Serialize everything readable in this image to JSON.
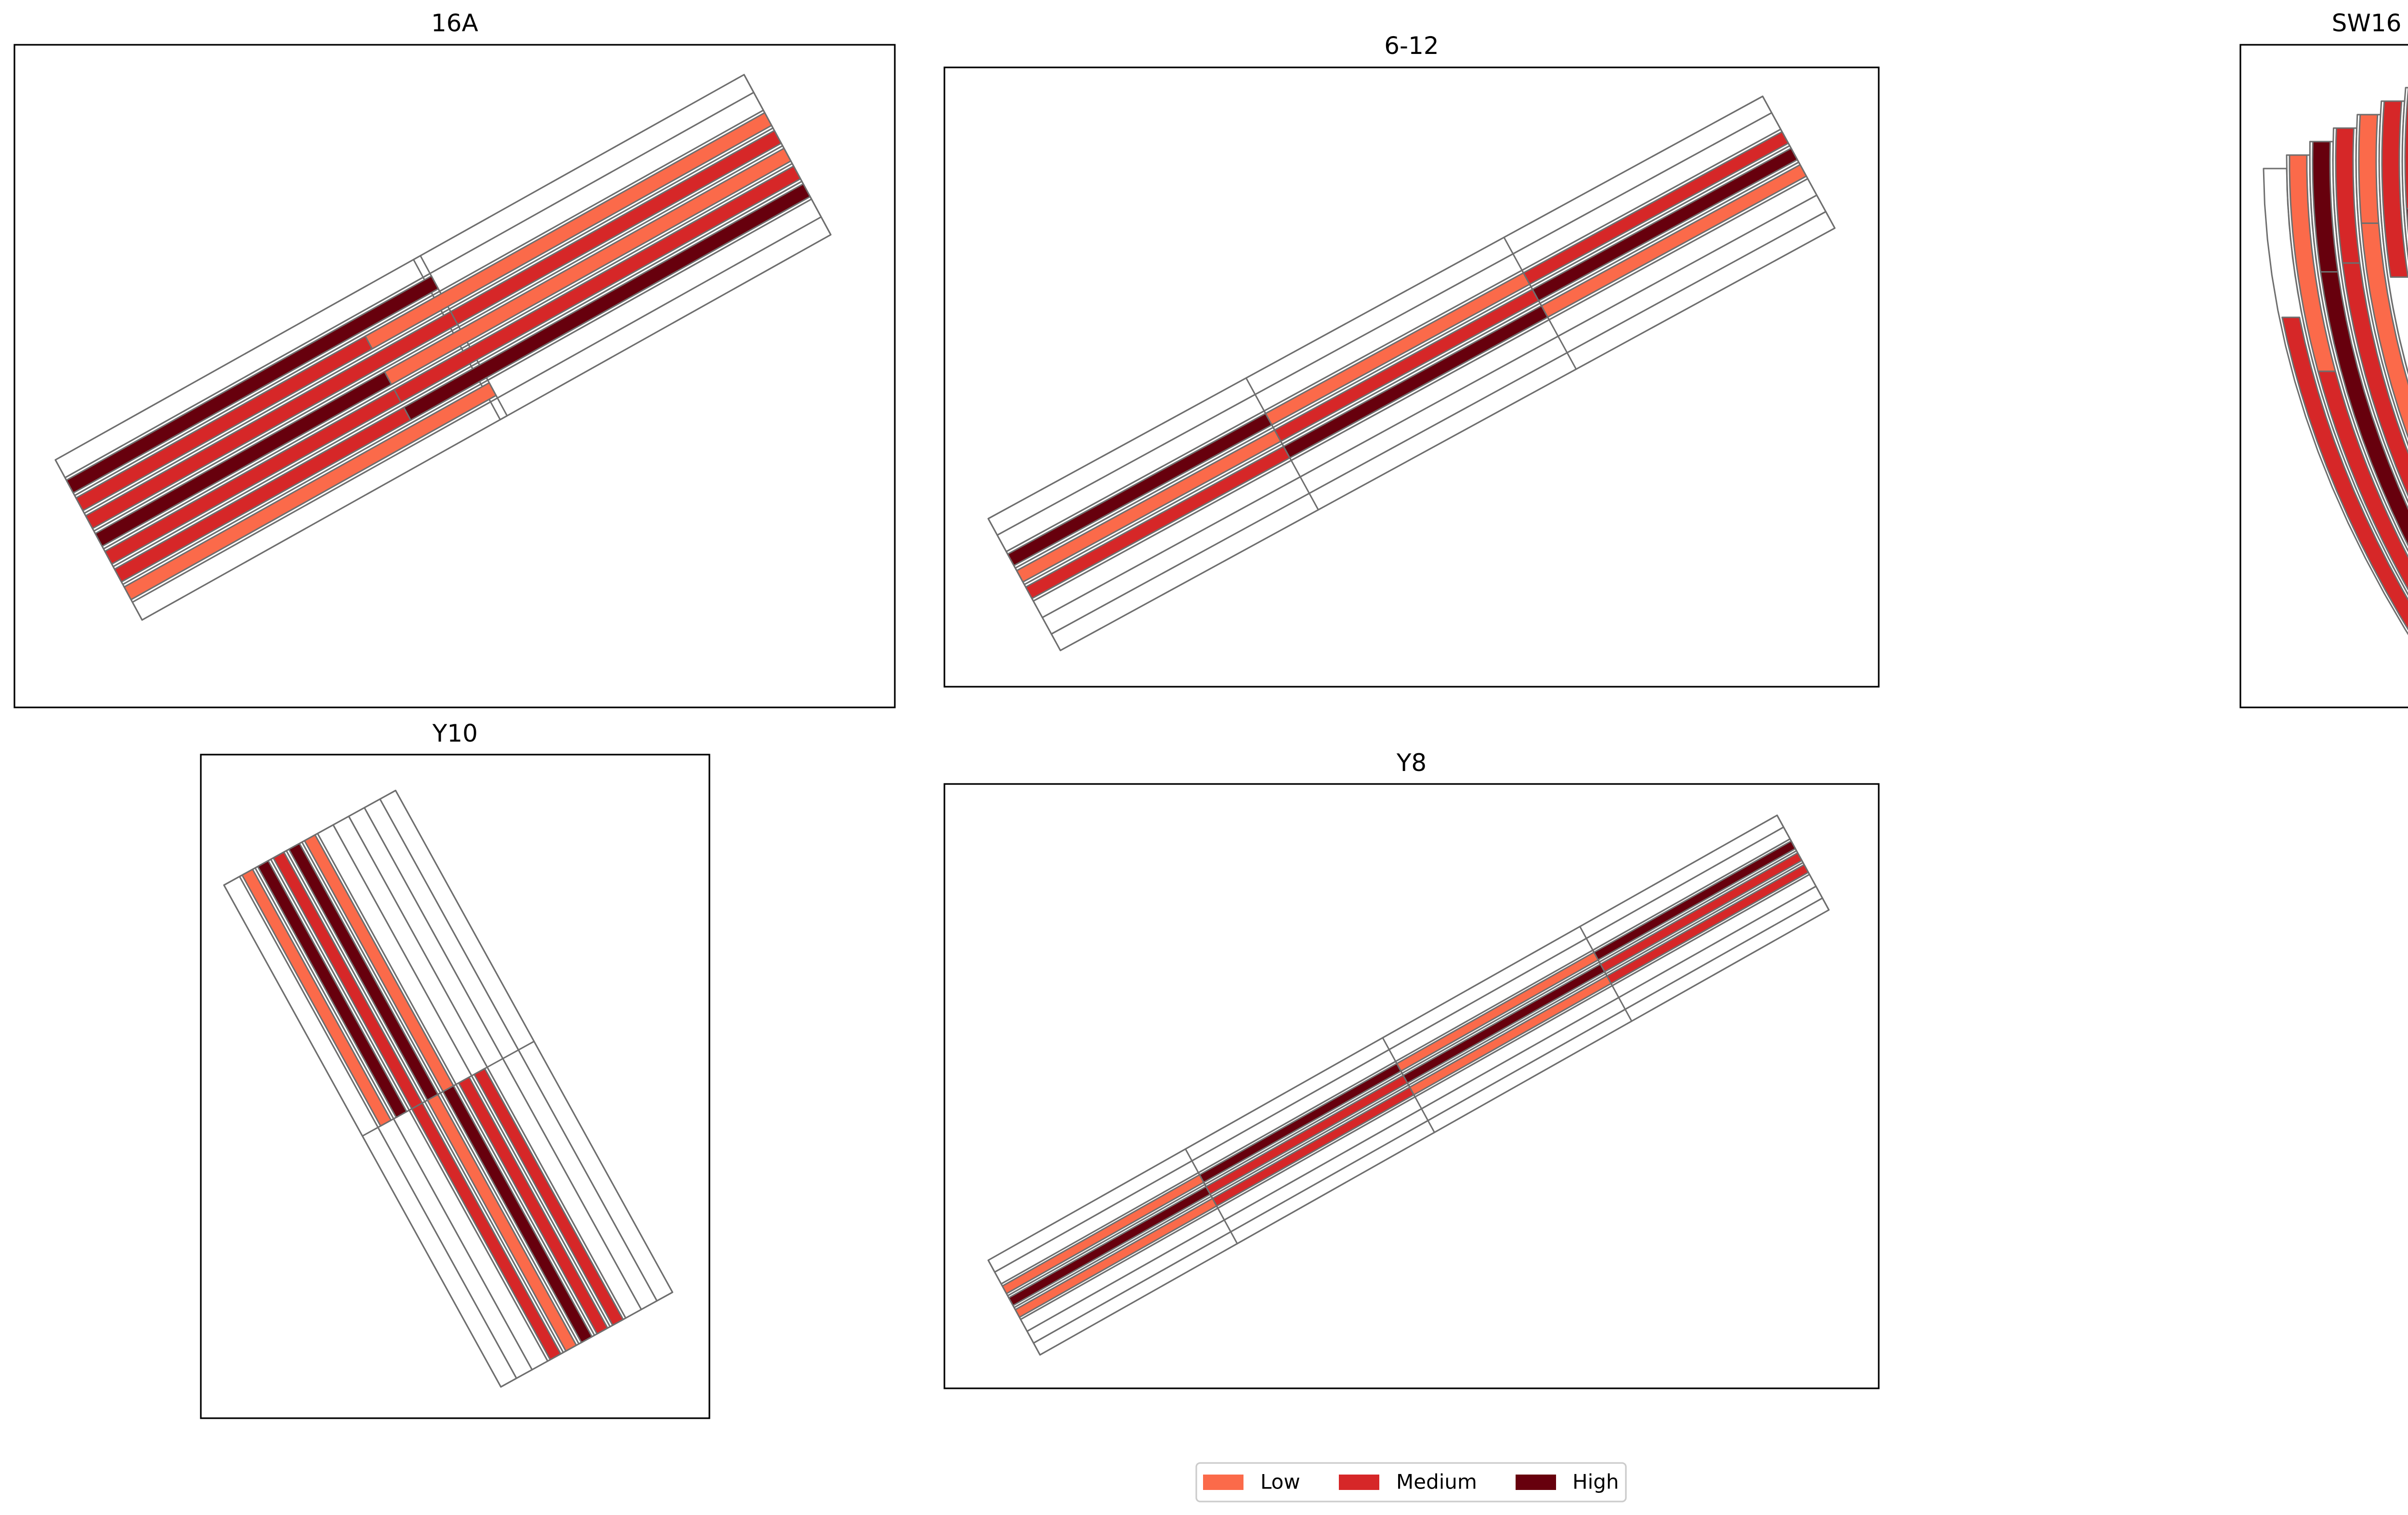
{
  "legend": {
    "items": [
      {
        "label": "Low",
        "color": "#fb6a4a"
      },
      {
        "label": "Medium",
        "color": "#d62728"
      },
      {
        "label": "High",
        "color": "#67000d"
      }
    ]
  },
  "panels": [
    {
      "id": "16A",
      "title": "16A"
    },
    {
      "id": "6-12",
      "title": "6-12"
    },
    {
      "id": "SW16",
      "title": "SW16"
    },
    {
      "id": "Y10",
      "title": "Y10"
    },
    {
      "id": "Y8",
      "title": "Y8"
    }
  ],
  "colors": {
    "strip_edge": "#6e6e6e",
    "frame": "#000000",
    "background": "#ffffff"
  }
}
